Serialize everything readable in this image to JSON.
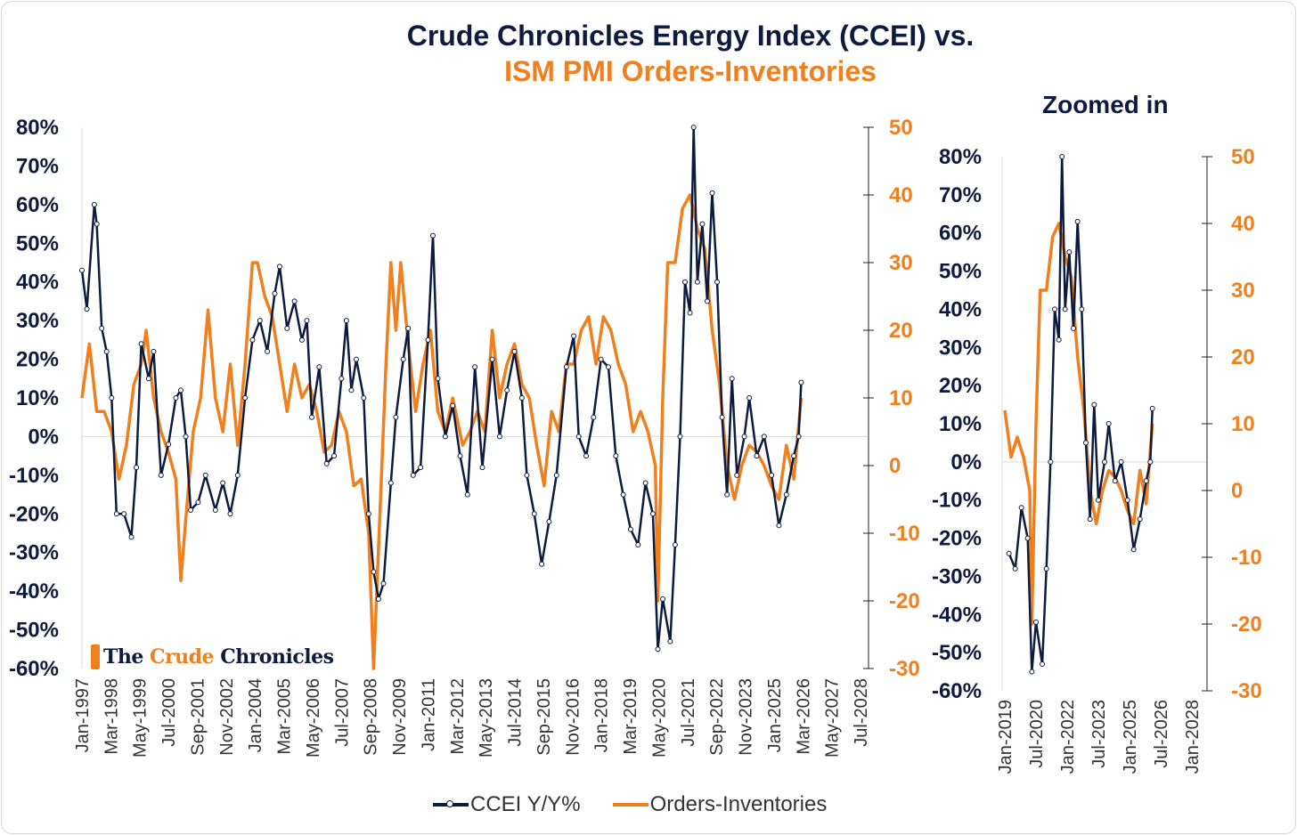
{
  "title_line1": "Crude Chronicles Energy Index (CCEI) vs.",
  "title_line2": "ISM PMI Orders-Inventories",
  "zoom_title": "Zoomed in",
  "logo": {
    "the": "The",
    "crude": "Crude",
    "chronicles": "Chronicles"
  },
  "colors": {
    "ccei": "#0d1b3e",
    "orders": "#f07f1e"
  },
  "chart_data": [
    {
      "type": "line",
      "name": "main",
      "x_ticks": [
        "Jan-1997",
        "Mar-1998",
        "May-1999",
        "Jul-2000",
        "Sep-2001",
        "Nov-2002",
        "Jan-2004",
        "Mar-2005",
        "May-2006",
        "Jul-2007",
        "Sep-2008",
        "Nov-2009",
        "Jan-2011",
        "Mar-2012",
        "May-2013",
        "Jul-2014",
        "Sep-2015",
        "Nov-2016",
        "Jan-2018",
        "Mar-2019",
        "May-2020",
        "Jul-2021",
        "Sep-2022",
        "Nov-2023",
        "Jan-2025",
        "Mar-2026",
        "May-2027",
        "Jul-2028"
      ],
      "xlim": [
        1997.0,
        2028.5
      ],
      "y_left": {
        "ticks": [
          "80%",
          "70%",
          "60%",
          "50%",
          "40%",
          "30%",
          "20%",
          "10%",
          "0%",
          "-10%",
          "-20%",
          "-30%",
          "-40%",
          "-50%",
          "-60%"
        ],
        "ylim": [
          -60,
          80
        ]
      },
      "y_right": {
        "ticks": [
          "50",
          "40",
          "30",
          "20",
          "10",
          "0",
          "-10",
          "-20",
          "-30"
        ],
        "ylim": [
          -30,
          50
        ]
      }
    },
    {
      "type": "line",
      "name": "zoomed",
      "x_ticks": [
        "Jan-2019",
        "Jul-2020",
        "Jan-2022",
        "Jul-2023",
        "Jan-2025",
        "Jul-2026",
        "Jan-2028"
      ],
      "xlim": [
        2019.0,
        2028.0
      ],
      "y_left": {
        "ticks": [
          "80%",
          "70%",
          "60%",
          "50%",
          "40%",
          "30%",
          "20%",
          "10%",
          "0%",
          "-10%",
          "-20%",
          "-30%",
          "-40%",
          "-50%",
          "-60%"
        ],
        "ylim": [
          -60,
          80
        ]
      },
      "y_right": {
        "ticks": [
          "50",
          "40",
          "30",
          "20",
          "10",
          "0",
          "-10",
          "-20",
          "-30"
        ],
        "ylim": [
          -30,
          50
        ]
      }
    }
  ],
  "series": [
    {
      "name": "CCEI Y/Y%",
      "axis": "left",
      "points": [
        [
          1997.0,
          43
        ],
        [
          1997.2,
          33
        ],
        [
          1997.5,
          60
        ],
        [
          1997.6,
          55
        ],
        [
          1997.8,
          28
        ],
        [
          1998.0,
          22
        ],
        [
          1998.2,
          10
        ],
        [
          1998.4,
          -20
        ],
        [
          1998.7,
          -20
        ],
        [
          1999.0,
          -26
        ],
        [
          1999.2,
          -8
        ],
        [
          1999.4,
          24
        ],
        [
          1999.7,
          15
        ],
        [
          1999.9,
          22
        ],
        [
          2000.2,
          -10
        ],
        [
          2000.5,
          -2
        ],
        [
          2000.8,
          10
        ],
        [
          2001.0,
          12
        ],
        [
          2001.2,
          0
        ],
        [
          2001.4,
          -19
        ],
        [
          2001.7,
          -17
        ],
        [
          2002.0,
          -10
        ],
        [
          2002.4,
          -19
        ],
        [
          2002.7,
          -12
        ],
        [
          2003.0,
          -20
        ],
        [
          2003.3,
          -10
        ],
        [
          2003.6,
          10
        ],
        [
          2003.9,
          25
        ],
        [
          2004.2,
          30
        ],
        [
          2004.5,
          22
        ],
        [
          2004.8,
          37
        ],
        [
          2005.0,
          44
        ],
        [
          2005.3,
          28
        ],
        [
          2005.6,
          35
        ],
        [
          2005.9,
          25
        ],
        [
          2006.1,
          30
        ],
        [
          2006.3,
          5
        ],
        [
          2006.6,
          18
        ],
        [
          2006.9,
          -7
        ],
        [
          2007.2,
          -5
        ],
        [
          2007.5,
          15
        ],
        [
          2007.7,
          30
        ],
        [
          2007.9,
          12
        ],
        [
          2008.1,
          20
        ],
        [
          2008.4,
          10
        ],
        [
          2008.6,
          -20
        ],
        [
          2008.8,
          -35
        ],
        [
          2009.0,
          -42
        ],
        [
          2009.2,
          -38
        ],
        [
          2009.5,
          -12
        ],
        [
          2009.7,
          5
        ],
        [
          2010.0,
          20
        ],
        [
          2010.2,
          28
        ],
        [
          2010.4,
          -10
        ],
        [
          2010.7,
          -8
        ],
        [
          2011.0,
          25
        ],
        [
          2011.2,
          52
        ],
        [
          2011.4,
          15
        ],
        [
          2011.7,
          0
        ],
        [
          2012.0,
          8
        ],
        [
          2012.3,
          -5
        ],
        [
          2012.6,
          -15
        ],
        [
          2012.9,
          18
        ],
        [
          2013.2,
          -8
        ],
        [
          2013.6,
          20
        ],
        [
          2013.9,
          0
        ],
        [
          2014.2,
          12
        ],
        [
          2014.5,
          22
        ],
        [
          2014.8,
          10
        ],
        [
          2015.0,
          -10
        ],
        [
          2015.3,
          -20
        ],
        [
          2015.6,
          -33
        ],
        [
          2015.9,
          -22
        ],
        [
          2016.2,
          -10
        ],
        [
          2016.6,
          18
        ],
        [
          2016.9,
          26
        ],
        [
          2017.1,
          0
        ],
        [
          2017.4,
          -5
        ],
        [
          2017.7,
          5
        ],
        [
          2018.0,
          20
        ],
        [
          2018.3,
          18
        ],
        [
          2018.6,
          -5
        ],
        [
          2018.9,
          -15
        ],
        [
          2019.2,
          -24
        ],
        [
          2019.5,
          -28
        ],
        [
          2019.8,
          -12
        ],
        [
          2020.1,
          -20
        ],
        [
          2020.3,
          -55
        ],
        [
          2020.5,
          -42
        ],
        [
          2020.8,
          -53
        ],
        [
          2021.0,
          -28
        ],
        [
          2021.2,
          0
        ],
        [
          2021.4,
          40
        ],
        [
          2021.6,
          32
        ],
        [
          2021.75,
          80
        ],
        [
          2021.9,
          40
        ],
        [
          2022.1,
          55
        ],
        [
          2022.3,
          35
        ],
        [
          2022.5,
          63
        ],
        [
          2022.7,
          40
        ],
        [
          2022.9,
          5
        ],
        [
          2023.1,
          -15
        ],
        [
          2023.3,
          15
        ],
        [
          2023.5,
          -10
        ],
        [
          2023.8,
          0
        ],
        [
          2024.0,
          10
        ],
        [
          2024.3,
          -5
        ],
        [
          2024.6,
          0
        ],
        [
          2024.9,
          -10
        ],
        [
          2025.2,
          -23
        ],
        [
          2025.5,
          -15
        ],
        [
          2025.8,
          -5
        ],
        [
          2026.0,
          0
        ],
        [
          2026.1,
          14
        ]
      ]
    },
    {
      "name": "Orders-Inventories",
      "axis": "right",
      "points": [
        [
          1997.0,
          10
        ],
        [
          1997.3,
          18
        ],
        [
          1997.6,
          8
        ],
        [
          1997.9,
          8
        ],
        [
          1998.2,
          5
        ],
        [
          1998.5,
          -2
        ],
        [
          1998.8,
          3
        ],
        [
          1999.1,
          12
        ],
        [
          1999.4,
          15
        ],
        [
          1999.6,
          20
        ],
        [
          1999.9,
          10
        ],
        [
          2000.2,
          5
        ],
        [
          2000.5,
          2
        ],
        [
          2000.8,
          -2
        ],
        [
          2001.0,
          -17
        ],
        [
          2001.2,
          -8
        ],
        [
          2001.5,
          5
        ],
        [
          2001.8,
          10
        ],
        [
          2002.1,
          23
        ],
        [
          2002.4,
          10
        ],
        [
          2002.7,
          5
        ],
        [
          2003.0,
          15
        ],
        [
          2003.3,
          3
        ],
        [
          2003.6,
          15
        ],
        [
          2003.9,
          30
        ],
        [
          2004.1,
          30
        ],
        [
          2004.4,
          25
        ],
        [
          2004.7,
          22
        ],
        [
          2005.0,
          15
        ],
        [
          2005.3,
          8
        ],
        [
          2005.6,
          15
        ],
        [
          2005.9,
          10
        ],
        [
          2006.2,
          12
        ],
        [
          2006.5,
          8
        ],
        [
          2006.8,
          2
        ],
        [
          2007.1,
          3
        ],
        [
          2007.4,
          8
        ],
        [
          2007.7,
          5
        ],
        [
          2008.0,
          -3
        ],
        [
          2008.3,
          -2
        ],
        [
          2008.6,
          -10
        ],
        [
          2008.8,
          -30
        ],
        [
          2009.0,
          -12
        ],
        [
          2009.3,
          15
        ],
        [
          2009.5,
          30
        ],
        [
          2009.7,
          20
        ],
        [
          2009.9,
          30
        ],
        [
          2010.2,
          18
        ],
        [
          2010.5,
          8
        ],
        [
          2010.8,
          15
        ],
        [
          2011.1,
          20
        ],
        [
          2011.4,
          8
        ],
        [
          2011.7,
          5
        ],
        [
          2012.0,
          10
        ],
        [
          2012.4,
          3
        ],
        [
          2012.7,
          5
        ],
        [
          2013.0,
          8
        ],
        [
          2013.3,
          5
        ],
        [
          2013.6,
          20
        ],
        [
          2013.9,
          10
        ],
        [
          2014.2,
          15
        ],
        [
          2014.5,
          18
        ],
        [
          2014.8,
          12
        ],
        [
          2015.1,
          10
        ],
        [
          2015.4,
          3
        ],
        [
          2015.7,
          -3
        ],
        [
          2016.0,
          8
        ],
        [
          2016.3,
          5
        ],
        [
          2016.6,
          15
        ],
        [
          2016.9,
          15
        ],
        [
          2017.2,
          20
        ],
        [
          2017.5,
          22
        ],
        [
          2017.8,
          15
        ],
        [
          2018.1,
          22
        ],
        [
          2018.4,
          20
        ],
        [
          2018.7,
          15
        ],
        [
          2019.0,
          12
        ],
        [
          2019.3,
          5
        ],
        [
          2019.6,
          8
        ],
        [
          2019.9,
          5
        ],
        [
          2020.2,
          0
        ],
        [
          2020.3,
          -20
        ],
        [
          2020.5,
          10
        ],
        [
          2020.7,
          30
        ],
        [
          2021.0,
          30
        ],
        [
          2021.3,
          38
        ],
        [
          2021.6,
          40
        ],
        [
          2021.9,
          35
        ],
        [
          2022.2,
          32
        ],
        [
          2022.5,
          20
        ],
        [
          2022.8,
          12
        ],
        [
          2023.1,
          0
        ],
        [
          2023.4,
          -5
        ],
        [
          2023.7,
          0
        ],
        [
          2024.0,
          3
        ],
        [
          2024.3,
          2
        ],
        [
          2024.6,
          0
        ],
        [
          2024.9,
          -3
        ],
        [
          2025.2,
          -5
        ],
        [
          2025.5,
          3
        ],
        [
          2025.8,
          -2
        ],
        [
          2026.1,
          10
        ]
      ]
    }
  ],
  "legend": {
    "ccei": "CCEI Y/Y%",
    "orders": "Orders-Inventories"
  }
}
